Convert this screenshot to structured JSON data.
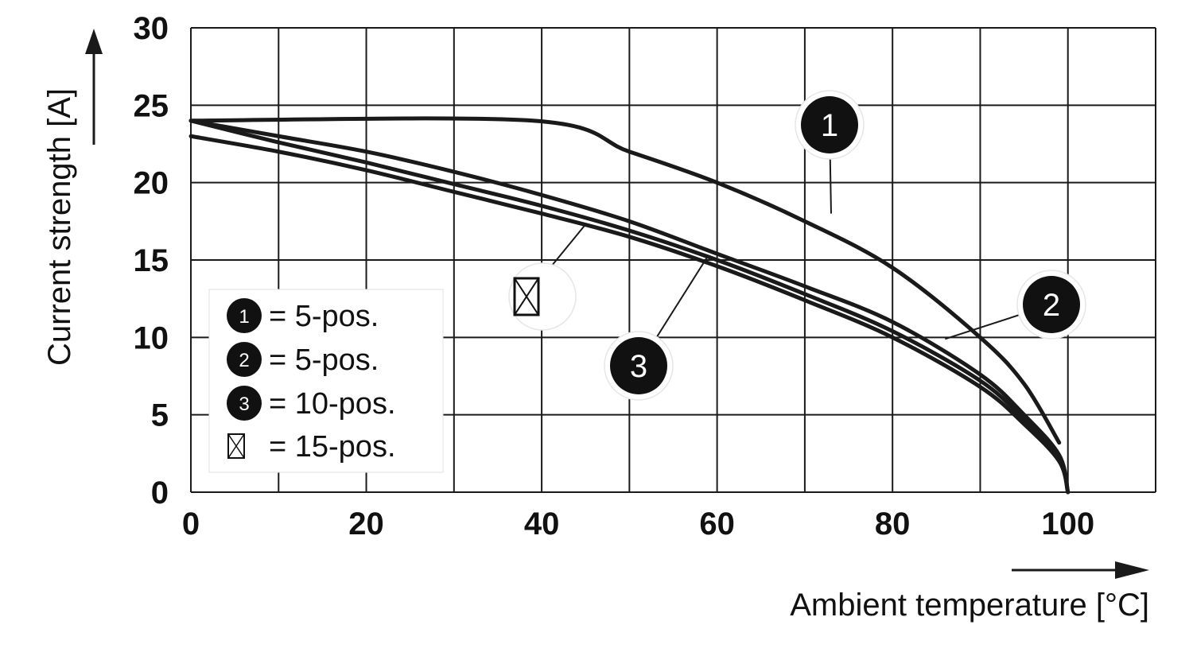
{
  "chart_data": {
    "type": "line",
    "xlabel": "Ambient temperature [°C]",
    "ylabel": "Current strength [A]",
    "xlim": [
      0,
      110
    ],
    "ylim": [
      0,
      30
    ],
    "x_ticks": [
      0,
      20,
      40,
      60,
      80,
      100
    ],
    "x_tick_labels": [
      "0",
      "20",
      "40",
      "60",
      "80",
      "100"
    ],
    "y_ticks": [
      0,
      5,
      10,
      15,
      20,
      25,
      30
    ],
    "y_tick_labels": [
      "0",
      "5",
      "10",
      "15",
      "20",
      "25",
      "30"
    ],
    "grid": true,
    "legend_position": "bottom-left",
    "series": [
      {
        "marker": "1",
        "x": [
          0,
          39,
          50,
          60,
          70,
          80,
          90,
          95,
          99
        ],
        "y": [
          24,
          24,
          22,
          20,
          17.5,
          14.5,
          10,
          7,
          3.2
        ]
      },
      {
        "marker": "2",
        "x": [
          0,
          10,
          20,
          30,
          40,
          50,
          60,
          70,
          80,
          90,
          95,
          99,
          100
        ],
        "y": [
          24,
          23,
          22,
          20.7,
          19.2,
          17.5,
          15.4,
          13.3,
          11,
          7.6,
          5,
          2.4,
          0
        ]
      },
      {
        "marker": "3",
        "x": [
          0,
          10,
          20,
          30,
          40,
          50,
          60,
          70,
          80,
          90,
          95,
          99,
          100
        ],
        "y": [
          24,
          22.6,
          21.3,
          19.9,
          18.5,
          16.9,
          15,
          12.8,
          10.4,
          7.2,
          4.7,
          2.2,
          0
        ]
      },
      {
        "marker": "15-pos",
        "x": [
          0,
          10,
          20,
          30,
          40,
          50,
          60,
          70,
          80,
          90,
          95,
          99,
          100
        ],
        "y": [
          23,
          22,
          20.8,
          19.4,
          18,
          16.5,
          14.6,
          12.4,
          10,
          6.8,
          4.4,
          2,
          0
        ]
      }
    ],
    "legend": [
      {
        "marker": "1",
        "label": "= 5-pos."
      },
      {
        "marker": "2",
        "label": "= 5-pos."
      },
      {
        "marker": "3",
        "label": "= 10-pos."
      },
      {
        "marker": "15-pos",
        "label": "= 15-pos."
      }
    ],
    "callouts": [
      {
        "marker": "1",
        "x": 73,
        "y": 18
      },
      {
        "marker": "2",
        "x": 86,
        "y": 9.9
      },
      {
        "marker": "3",
        "x": 59,
        "y": 15.3
      },
      {
        "marker": "15-pos",
        "x": 45,
        "y": 17.3
      }
    ],
    "colors": {
      "line": "#1a1a1a",
      "grid": "#1a1a1a",
      "marker_fill": "#111111"
    }
  }
}
